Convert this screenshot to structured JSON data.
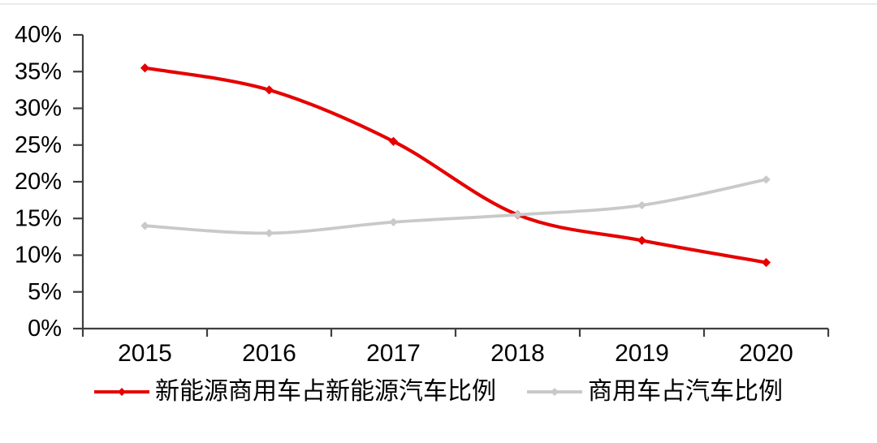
{
  "figure": {
    "background": "#ffffff",
    "top_divider_color": "#ebebeb"
  },
  "chart_data": {
    "type": "line",
    "title": "",
    "categories": [
      "2015",
      "2016",
      "2017",
      "2018",
      "2019",
      "2020"
    ],
    "series": [
      {
        "name": "新能源商用车占新能源汽车比例",
        "color": "#e60000",
        "values": [
          35.5,
          32.5,
          25.5,
          15.5,
          12,
          9
        ]
      },
      {
        "name": "商用车占汽车比例",
        "color": "#c9c9c9",
        "values": [
          14,
          13,
          14.5,
          15.5,
          16.8,
          20.3
        ]
      }
    ],
    "xlabel": "",
    "ylabel": "",
    "ylim": [
      0,
      40
    ],
    "y_tick_step": 5,
    "y_tick_labels": [
      "0%",
      "5%",
      "10%",
      "15%",
      "20%",
      "25%",
      "30%",
      "35%",
      "40%"
    ],
    "x_tick_labels": [
      "2015",
      "2016",
      "2017",
      "2018",
      "2019",
      "2020"
    ],
    "grid": false,
    "smooth_lines": true,
    "marker": "diamond",
    "legend_position": "bottom",
    "axis_color": "#3f3f3f",
    "label_color": "#000000"
  }
}
